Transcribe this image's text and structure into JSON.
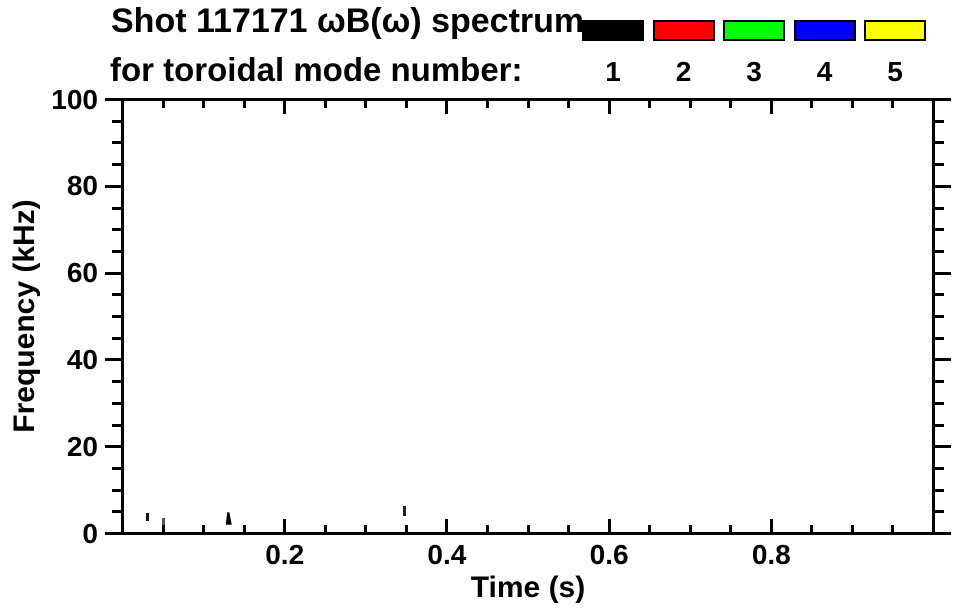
{
  "header": {
    "title_line1": "Shot 117171 ωB(ω) spectrum",
    "title_line2": "for toroidal mode number:"
  },
  "legend": {
    "entries": [
      {
        "label": "1",
        "color": "#000000"
      },
      {
        "label": "2",
        "color": "#ff0000"
      },
      {
        "label": "3",
        "color": "#00ff00"
      },
      {
        "label": "4",
        "color": "#0000ff"
      },
      {
        "label": "5",
        "color": "#ffff00"
      }
    ]
  },
  "axes": {
    "x_label": "Time (s)",
    "y_label": "Frequency (kHz)"
  },
  "chart_data": {
    "type": "scatter",
    "title": "Shot 117171 ωB(ω) spectrum for toroidal mode number:",
    "xlabel": "Time (s)",
    "ylabel": "Frequency (kHz)",
    "xlim": [
      0,
      1.0
    ],
    "ylim": [
      0,
      100
    ],
    "xticks_major": [
      0.2,
      0.4,
      0.6,
      0.8
    ],
    "xtick_labels": [
      "0.2",
      "0.4",
      "0.6",
      "0.8"
    ],
    "xtick_minor_step": 0.05,
    "yticks_major": [
      0,
      20,
      40,
      60,
      80,
      100
    ],
    "ytick_labels": [
      "0",
      "20",
      "40",
      "60",
      "80",
      "100"
    ],
    "ytick_minor_step": 5,
    "grid": false,
    "legend_position": "top-right-above-plot",
    "series": [
      {
        "name": "1",
        "color": "#000000",
        "features": [
          {
            "t": 0.031,
            "f_min": 2.8,
            "f_max": 4.7,
            "shape": "dash",
            "color": "#111111"
          },
          {
            "t": 0.051,
            "f_min": 2.0,
            "f_max": 3.5,
            "shape": "dash",
            "color": "#555555"
          },
          {
            "t": 0.131,
            "f_min": 2.0,
            "f_max": 4.9,
            "shape": "wedge",
            "color": "#000000"
          },
          {
            "t": 0.348,
            "f_min": 4.0,
            "f_max": 6.4,
            "shape": "dash",
            "color": "#222222"
          }
        ]
      },
      {
        "name": "2",
        "color": "#ff0000",
        "features": []
      },
      {
        "name": "3",
        "color": "#00ff00",
        "features": []
      },
      {
        "name": "4",
        "color": "#0000ff",
        "features": []
      },
      {
        "name": "5",
        "color": "#ffff00",
        "features": []
      }
    ]
  }
}
